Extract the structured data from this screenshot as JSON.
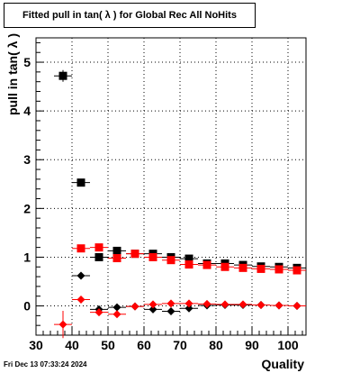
{
  "title": "Fitted pull in tan( λ ) for Global Rec All NoHits",
  "timestamp": "Fri Dec 13 07:33:24 2024",
  "chart_data": {
    "type": "scatter",
    "title": "Fitted pull in tan( λ ) for Global Rec All NoHits",
    "xlabel": "Quality",
    "ylabel": "pull in tan( λ )",
    "xlim": [
      30,
      105
    ],
    "ylim": [
      -0.6,
      5.5
    ],
    "xticks": [
      30,
      40,
      50,
      60,
      70,
      80,
      90,
      100
    ],
    "yticks": [
      0,
      1,
      2,
      3,
      4,
      5
    ],
    "grid": true,
    "series": [
      {
        "marker": "square",
        "color": "#000000",
        "x": [
          37.5,
          42.5,
          47.5,
          52.5,
          57.5,
          62.5,
          67.5,
          72.5,
          77.5,
          82.5,
          87.5,
          92.5,
          97.5,
          102.5
        ],
        "y": [
          4.72,
          2.53,
          1.0,
          1.13,
          1.07,
          1.07,
          1.0,
          0.97,
          0.87,
          0.87,
          0.84,
          0.81,
          0.8,
          0.78
        ],
        "xerr": 2.5,
        "yerr": [
          0.12,
          0.03,
          0.03,
          0.03,
          0.02,
          0.02,
          0.02,
          0.02,
          0.02,
          0.02,
          0.02,
          0.02,
          0.02,
          0.02
        ]
      },
      {
        "marker": "square",
        "color": "#ff0000",
        "x": [
          42.5,
          47.5,
          52.5,
          57.5,
          62.5,
          67.5,
          72.5,
          77.5,
          82.5,
          87.5,
          92.5,
          97.5,
          102.5
        ],
        "y": [
          1.18,
          1.2,
          0.98,
          1.07,
          1.0,
          0.94,
          0.85,
          0.84,
          0.8,
          0.78,
          0.76,
          0.75,
          0.73
        ],
        "xerr": 2.5,
        "yerr": [
          0.04,
          0.03,
          0.03,
          0.02,
          0.02,
          0.02,
          0.02,
          0.02,
          0.02,
          0.02,
          0.02,
          0.02,
          0.02
        ]
      },
      {
        "marker": "diamond",
        "color": "#000000",
        "x": [
          42.5,
          47.5,
          52.5,
          57.5,
          62.5,
          67.5,
          72.5,
          77.5,
          82.5,
          87.5,
          92.5,
          97.5,
          102.5
        ],
        "y": [
          0.62,
          -0.07,
          -0.03,
          -0.01,
          -0.07,
          -0.11,
          -0.05,
          0.01,
          0.02,
          0.02,
          0.02,
          0.01,
          0.0
        ],
        "xerr": 2.5,
        "yerr": [
          0.03,
          0.02,
          0.02,
          0.02,
          0.02,
          0.02,
          0.02,
          0.02,
          0.02,
          0.02,
          0.02,
          0.02,
          0.02
        ]
      },
      {
        "marker": "diamond",
        "color": "#ff0000",
        "x": [
          37.5,
          42.5,
          47.5,
          52.5,
          57.5,
          62.5,
          67.5,
          72.5,
          77.5,
          82.5,
          87.5,
          92.5,
          97.5,
          102.5
        ],
        "y": [
          -0.38,
          0.13,
          -0.13,
          -0.17,
          -0.01,
          0.03,
          0.05,
          0.05,
          0.04,
          0.03,
          0.03,
          0.02,
          0.01,
          0.0
        ],
        "xerr": 2.5,
        "yerr": [
          0.28,
          0.03,
          0.02,
          0.02,
          0.02,
          0.02,
          0.02,
          0.02,
          0.02,
          0.02,
          0.02,
          0.02,
          0.02,
          0.02
        ]
      }
    ]
  }
}
